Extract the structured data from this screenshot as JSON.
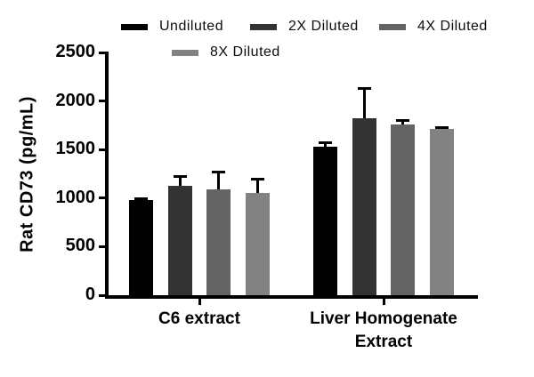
{
  "chart_data": {
    "type": "bar",
    "title": "",
    "xlabel": "",
    "ylabel": "Rat CD73 (pg/mL)",
    "ylim": [
      0,
      2500
    ],
    "yticks": [
      0,
      500,
      1000,
      1500,
      2000,
      2500
    ],
    "grid": false,
    "legend_position": "top",
    "error_bars": "upper, capped, black",
    "categories": [
      "C6 extract",
      "Liver Homogenate\nExtract"
    ],
    "series": [
      {
        "name": "Undiluted",
        "color": "#000000",
        "values": [
          980,
          1525
        ],
        "errors_plus": [
          25,
          60
        ]
      },
      {
        "name": "2X Diluted",
        "color": "#333333",
        "values": [
          1125,
          1820
        ],
        "errors_plus": [
          115,
          320
        ]
      },
      {
        "name": "4X Diluted",
        "color": "#636363",
        "values": [
          1090,
          1755
        ],
        "errors_plus": [
          195,
          60
        ]
      },
      {
        "name": "8X Diluted",
        "color": "#828282",
        "values": [
          1050,
          1710
        ],
        "errors_plus": [
          160,
          30
        ]
      }
    ]
  }
}
